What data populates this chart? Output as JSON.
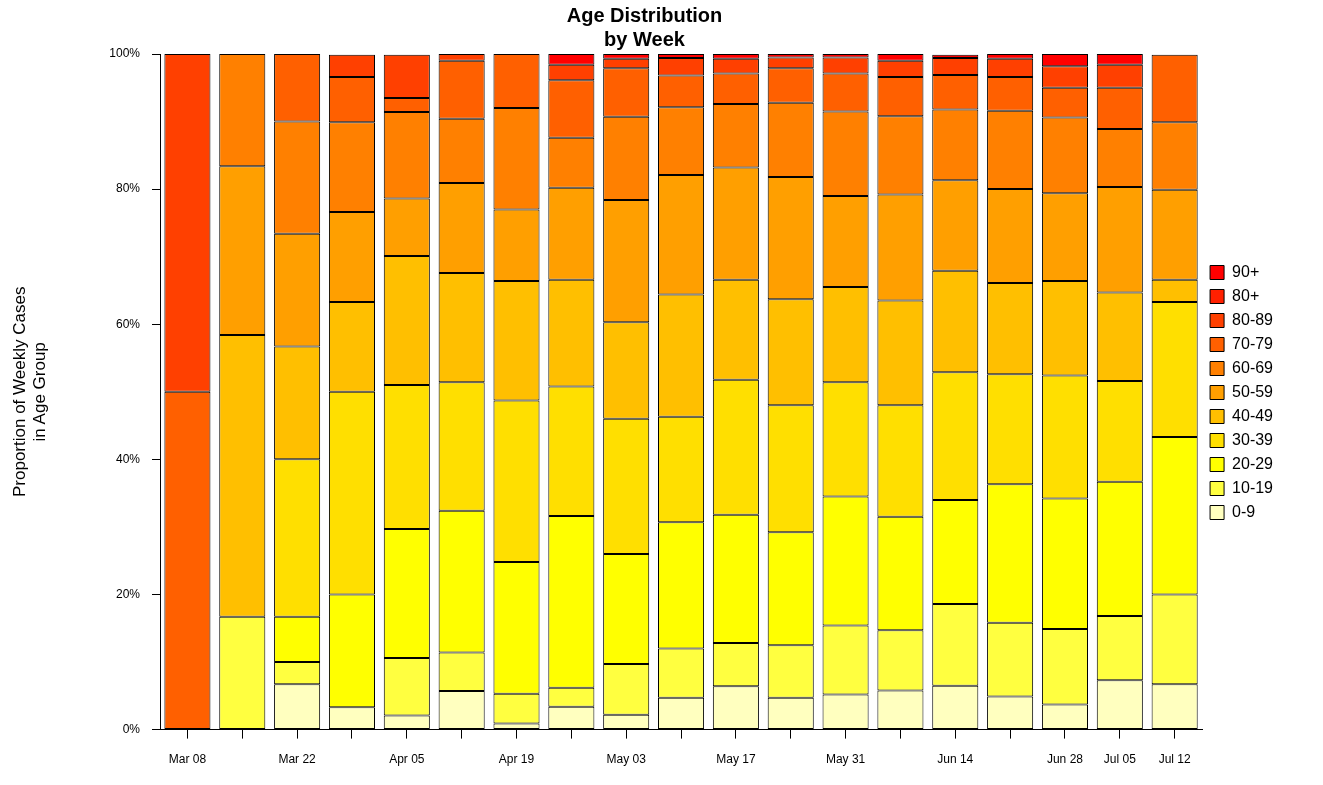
{
  "chart_data": {
    "type": "bar",
    "stacked": true,
    "title": "Age Distribution\nby Week",
    "ylabel": "Proportion of Weekly Cases\nin Age Group",
    "categories": [
      "Mar 08",
      null,
      "Mar 22",
      null,
      "Apr 05",
      null,
      "Apr 19",
      null,
      "May 03",
      null,
      "May 17",
      null,
      "May 31",
      null,
      "Jun 14",
      null,
      "Jun 28",
      "Jul 05",
      "Jul 12"
    ],
    "ylim": [
      0,
      100
    ],
    "yticks": [
      {
        "value": 0,
        "label": "0%"
      },
      {
        "value": 20,
        "label": "20%"
      },
      {
        "value": 40,
        "label": "40%"
      },
      {
        "value": 60,
        "label": "60%"
      },
      {
        "value": 80,
        "label": "80%"
      },
      {
        "value": 100,
        "label": "100%"
      }
    ],
    "grid": false,
    "legend": "right",
    "series": [
      {
        "name": "0-9",
        "color": "#ffffbf",
        "values": [
          0,
          0,
          6.7,
          3.3,
          2.1,
          5.7,
          0.9,
          3.4,
          2.2,
          4.7,
          6.4,
          4.7,
          5.2,
          5.8,
          6.5,
          4.9,
          3.7,
          7.3,
          6.7
        ]
      },
      {
        "name": "10-19",
        "color": "#ffff40",
        "values": [
          0,
          16.7,
          3.3,
          0,
          8.5,
          5.7,
          4.4,
          2.8,
          7.5,
          7.3,
          6.4,
          7.8,
          10.2,
          8.9,
          12.1,
          10.9,
          11.2,
          9.5,
          13.3
        ]
      },
      {
        "name": "20-29",
        "color": "#ffff00",
        "values": [
          0,
          0,
          6.7,
          16.7,
          19.1,
          21.0,
          19.5,
          25.4,
          16.3,
          18.7,
          19.0,
          16.7,
          19.1,
          16.8,
          15.4,
          20.5,
          19.3,
          19.9,
          23.3
        ]
      },
      {
        "name": "30-39",
        "color": "#ffdf00",
        "values": [
          0,
          0,
          23.3,
          30,
          21.3,
          19.0,
          23.9,
          19.2,
          20.0,
          15.6,
          20.0,
          18.8,
          16.9,
          16.5,
          18.9,
          16.3,
          18.2,
          14.9,
          20
        ]
      },
      {
        "name": "40-49",
        "color": "#ffbf00",
        "values": [
          0,
          41.7,
          16.7,
          13.3,
          19.1,
          16.2,
          17.7,
          15.8,
          14.3,
          18.1,
          14.8,
          15.7,
          14.1,
          15.5,
          15.0,
          13.5,
          14.0,
          13.1,
          3.3
        ]
      },
      {
        "name": "50-59",
        "color": "#ff9f00",
        "values": [
          0,
          25,
          16.7,
          13.3,
          8.5,
          13.3,
          10.6,
          13.6,
          18.1,
          17.7,
          16.6,
          18.1,
          13.5,
          15.7,
          13.4,
          13.9,
          13.0,
          15.6,
          13.3
        ]
      },
      {
        "name": "60-69",
        "color": "#ff8000",
        "values": [
          0,
          16.6,
          16.6,
          13.3,
          12.8,
          9.5,
          15.0,
          7.4,
          12.3,
          10.0,
          9.4,
          11.0,
          12.5,
          11.6,
          10.5,
          11.6,
          11.2,
          8.6,
          10
        ]
      },
      {
        "name": "70-79",
        "color": "#ff6000",
        "values": [
          50,
          0,
          10,
          6.7,
          2.1,
          8.6,
          8.0,
          8.5,
          7.2,
          4.7,
          4.5,
          5.1,
          5.6,
          5.8,
          5.1,
          5.0,
          4.4,
          6.1,
          10
        ]
      },
      {
        "name": "80-89",
        "color": "#ff4000",
        "values": [
          50,
          0,
          0,
          3.3,
          6.4,
          1.0,
          0,
          2.3,
          1.4,
          2.6,
          2.2,
          1.6,
          2.4,
          2.4,
          2.5,
          2.7,
          3.2,
          3.4,
          0
        ]
      },
      {
        "name": "80+",
        "color": "#ff2000",
        "values": [
          0,
          0,
          0,
          0,
          0,
          0,
          0,
          0,
          0,
          0,
          0,
          0,
          0,
          0,
          0,
          0,
          0,
          0,
          0
        ]
      },
      {
        "name": "90+",
        "color": "#ff0000",
        "values": [
          0,
          0,
          0,
          0,
          0,
          0,
          0,
          1.6,
          0.7,
          0.6,
          0.7,
          0.5,
          0.5,
          1.0,
          0.5,
          0.7,
          1.8,
          1.6,
          0
        ]
      }
    ]
  }
}
